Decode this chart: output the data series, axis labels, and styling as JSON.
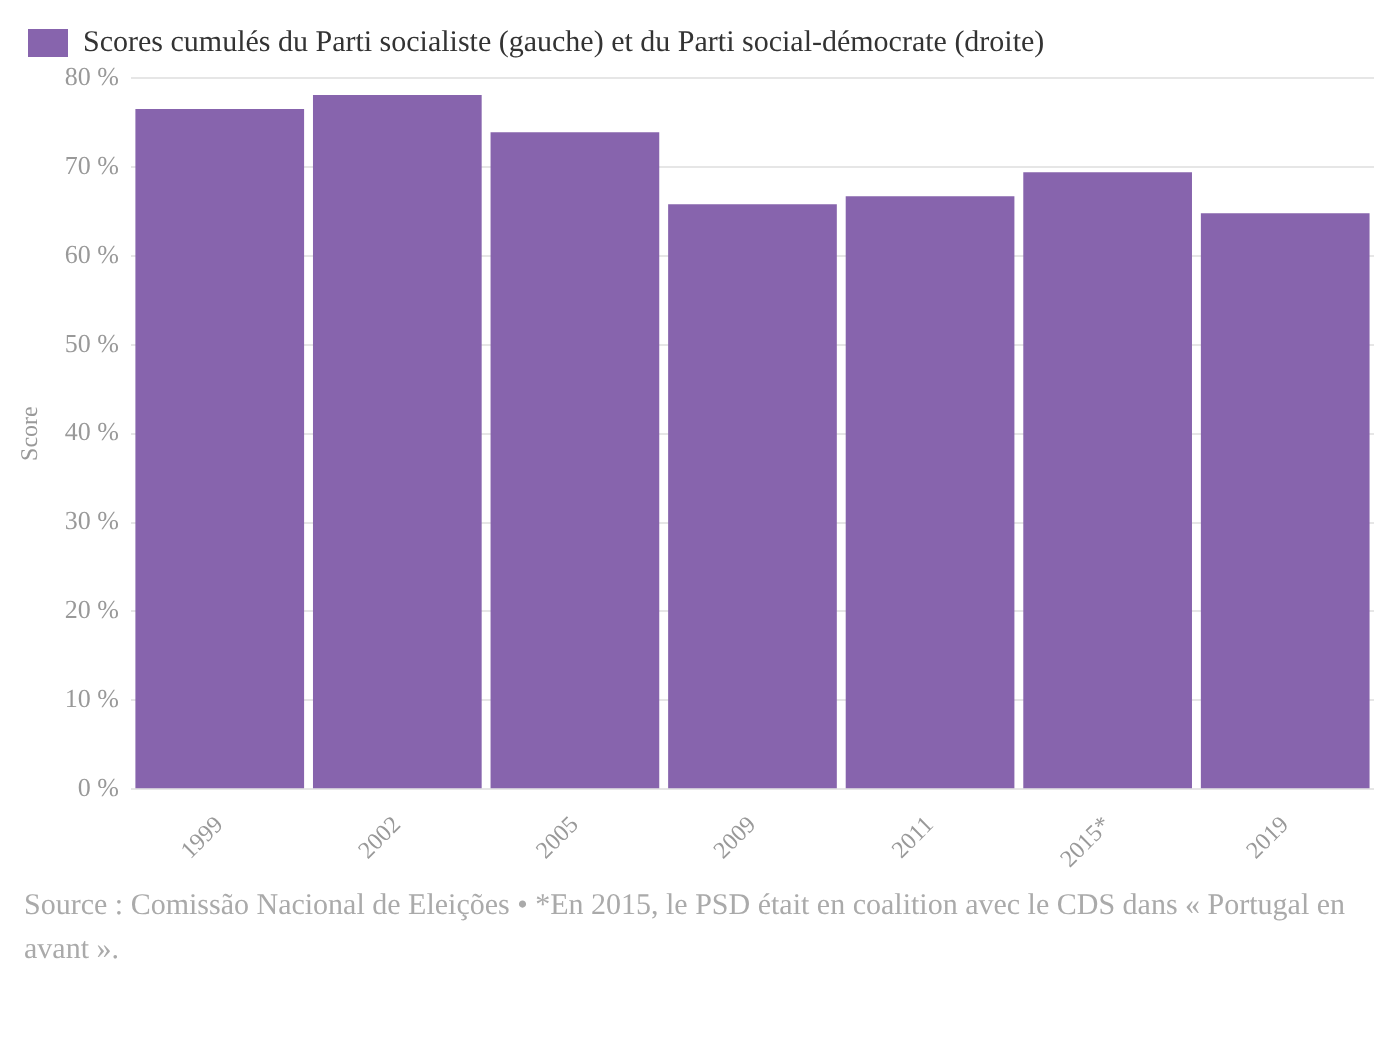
{
  "chart_data": {
    "type": "bar",
    "categories": [
      "1999",
      "2002",
      "2005",
      "2009",
      "2011",
      "2015*",
      "2019"
    ],
    "series": [
      {
        "name": "Scores cumulés du Parti socialiste (gauche) et du Parti social-démocrate (droite)",
        "color": "#8764ad",
        "values": [
          76.5,
          78.1,
          73.9,
          65.8,
          66.7,
          69.4,
          64.8
        ]
      }
    ],
    "ylabel": "Score",
    "ylim": [
      0,
      80
    ],
    "yticks": [
      {
        "value": 0,
        "label": "0 %"
      },
      {
        "value": 10,
        "label": "10 %"
      },
      {
        "value": 20,
        "label": "20 %"
      },
      {
        "value": 30,
        "label": "30 %"
      },
      {
        "value": 40,
        "label": "40 %"
      },
      {
        "value": 50,
        "label": "50 %"
      },
      {
        "value": 60,
        "label": "60 %"
      },
      {
        "value": 70,
        "label": "70 %"
      },
      {
        "value": 80,
        "label": "80 %"
      }
    ],
    "grid": "y",
    "legend": "top left",
    "annotations": [
      "Source : Comissão Nacional de Eleições • *En 2015, le PSD était en coalition avec le CDS dans « Portugal en avant »."
    ]
  }
}
